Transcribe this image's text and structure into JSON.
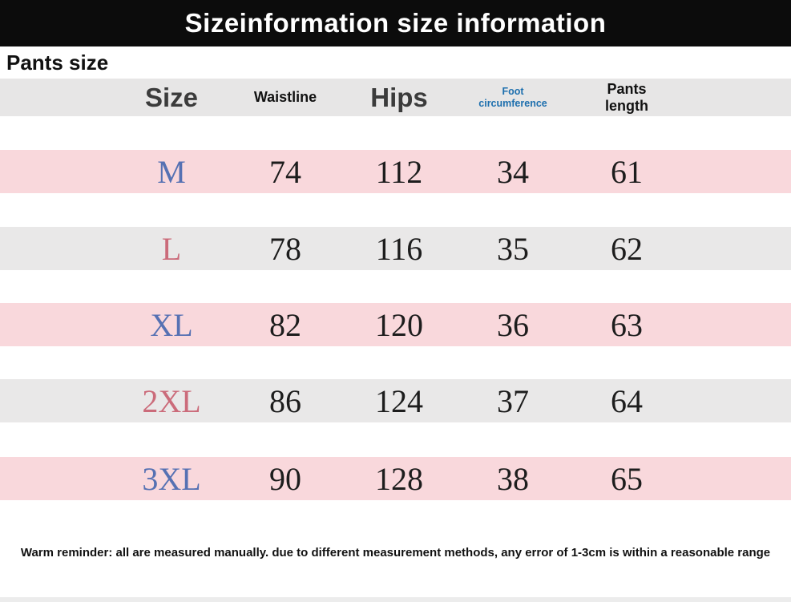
{
  "title": "Sizeinformation size information",
  "section_label": "Pants size",
  "table": {
    "headers": [
      "Size",
      "Waistline",
      "Hips",
      "Foot circumference",
      "Pants length"
    ],
    "rows": [
      {
        "size": "M",
        "values": [
          "74",
          "112",
          "34",
          "61"
        ]
      },
      {
        "size": "L",
        "values": [
          "78",
          "116",
          "35",
          "62"
        ]
      },
      {
        "size": "XL",
        "values": [
          "82",
          "120",
          "36",
          "63"
        ]
      },
      {
        "size": "2XL",
        "values": [
          "86",
          "124",
          "37",
          "64"
        ]
      },
      {
        "size": "3XL",
        "values": [
          "90",
          "128",
          "38",
          "65"
        ]
      }
    ]
  },
  "note": "Warm reminder: all are measured manually. due to different measurement methods, any error of 1-3cm is within a reasonable range",
  "colors": {
    "header_bar": "#0c0c0c",
    "table_header_bg": "#e7e6e6",
    "row_pink": "#f9d8dc",
    "row_gray": "#e9e8e8",
    "size_blue": "#5671b3",
    "size_rose": "#cb6b7a",
    "foot_circumference_blue": "#1d6fae"
  }
}
